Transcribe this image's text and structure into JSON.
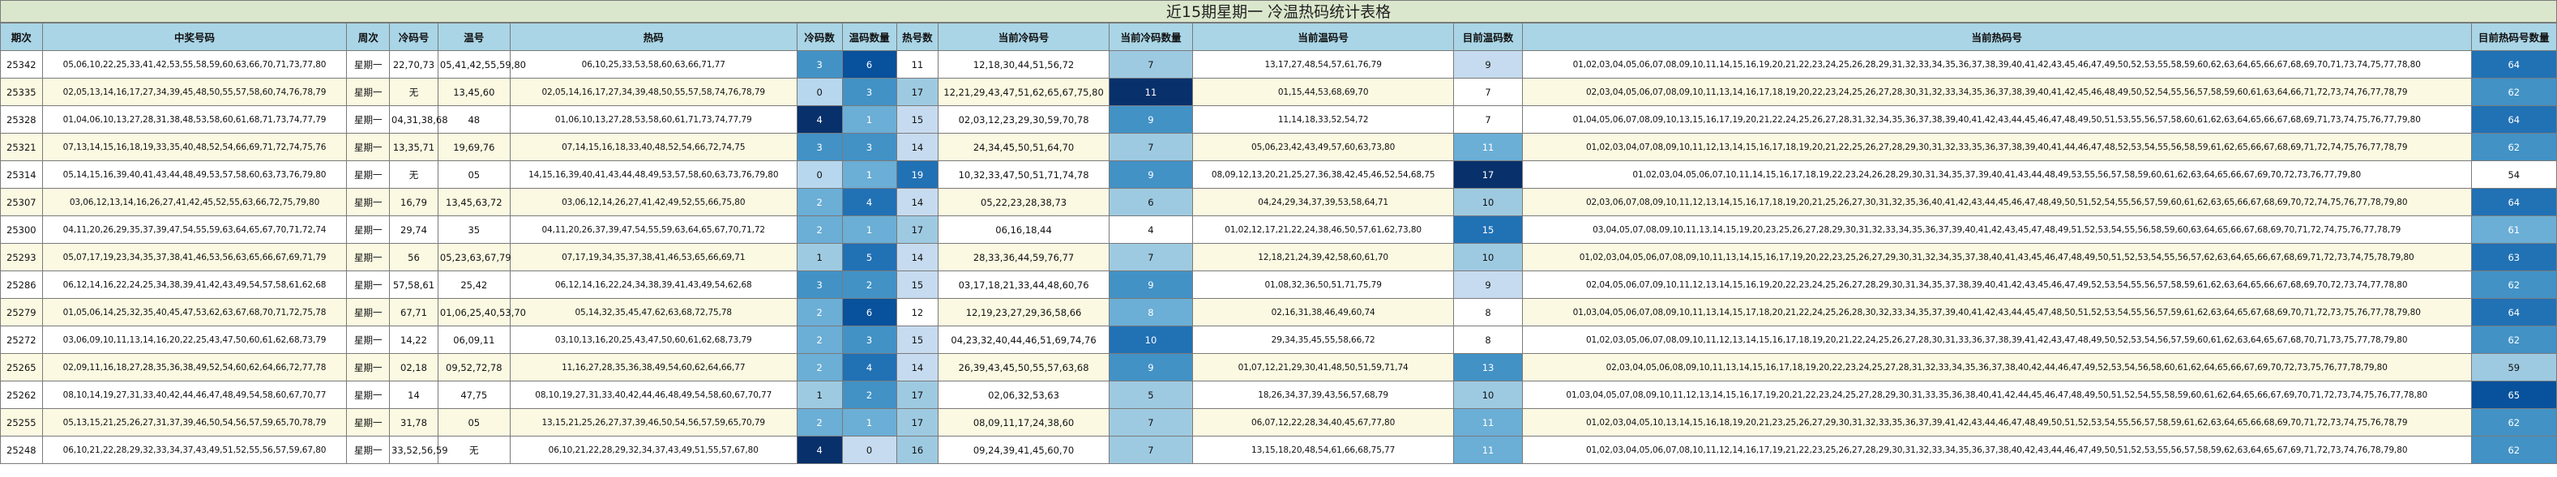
{
  "title": "近15期星期一 冷温热码统计表格",
  "headers": [
    "期次",
    "中奖号码",
    "周次",
    "冷码号",
    "温号",
    "热码",
    "冷码数",
    "温码数量",
    "热号数",
    "当前冷码号",
    "当前冷码数量",
    "当前温码号",
    "目前温码数",
    "当前热码号",
    "目前热码号数量"
  ],
  "rows": [
    {
      "issue": "25342",
      "win": "05,06,10,22,25,33,41,42,53,55,58,59,60,63,66,70,71,73,77,80",
      "week": "星期一",
      "cold": "22,70,73",
      "warm": "05,41,42,55,59,80",
      "hot": "06,10,25,33,53,58,60,63,66,71,77",
      "cold_n": "3",
      "warm_n": "6",
      "hot_n": "11",
      "cur_cold": "12,18,30,44,51,56,72",
      "cur_cold_n": "7",
      "cur_warm": "13,17,27,48,54,57,61,76,79",
      "cur_warm_n": "9",
      "cur_hot": "01,02,03,04,05,06,07,08,09,10,11,14,15,16,19,20,21,22,23,24,25,26,28,29,31,32,33,34,35,36,37,38,39,40,41,42,43,45,46,47,49,50,52,53,55,58,59,60,62,63,64,65,66,67,68,69,70,71,73,74,75,77,78,80",
      "cur_hot_n": "64"
    },
    {
      "issue": "25335",
      "win": "02,05,13,14,16,17,27,34,39,45,48,50,55,57,58,60,74,76,78,79",
      "week": "星期一",
      "cold": "无",
      "warm": "13,45,60",
      "hot": "02,05,14,16,17,27,34,39,48,50,55,57,58,74,76,78,79",
      "cold_n": "0",
      "warm_n": "3",
      "hot_n": "17",
      "cur_cold": "12,21,29,43,47,51,62,65,67,75,80",
      "cur_cold_n": "11",
      "cur_warm": "01,15,44,53,68,69,70",
      "cur_warm_n": "7",
      "cur_hot": "02,03,04,05,06,07,08,09,10,11,13,14,16,17,18,19,20,22,23,24,25,26,27,28,30,31,32,33,34,35,36,37,38,39,40,41,42,45,46,48,49,50,52,54,55,56,57,58,59,60,61,63,64,66,71,72,73,74,76,77,78,79",
      "cur_hot_n": "62"
    },
    {
      "issue": "25328",
      "win": "01,04,06,10,13,27,28,31,38,48,53,58,60,61,68,71,73,74,77,79",
      "week": "星期一",
      "cold": "04,31,38,68",
      "warm": "48",
      "hot": "01,06,10,13,27,28,53,58,60,61,71,73,74,77,79",
      "cold_n": "4",
      "warm_n": "1",
      "hot_n": "15",
      "cur_cold": "02,03,12,23,29,30,59,70,78",
      "cur_cold_n": "9",
      "cur_warm": "11,14,18,33,52,54,72",
      "cur_warm_n": "7",
      "cur_hot": "01,04,05,06,07,08,09,10,13,15,16,17,19,20,21,22,24,25,26,27,28,31,32,34,35,36,37,38,39,40,41,42,43,44,45,46,47,48,49,50,51,53,55,56,57,58,60,61,62,63,64,65,66,67,68,69,71,73,74,75,76,77,79,80",
      "cur_hot_n": "64"
    },
    {
      "issue": "25321",
      "win": "07,13,14,15,16,18,19,33,35,40,48,52,54,66,69,71,72,74,75,76",
      "week": "星期一",
      "cold": "13,35,71",
      "warm": "19,69,76",
      "hot": "07,14,15,16,18,33,40,48,52,54,66,72,74,75",
      "cold_n": "3",
      "warm_n": "3",
      "hot_n": "14",
      "cur_cold": "24,34,45,50,51,64,70",
      "cur_cold_n": "7",
      "cur_warm": "05,06,23,42,43,49,57,60,63,73,80",
      "cur_warm_n": "11",
      "cur_hot": "01,02,03,04,07,08,09,10,11,12,13,14,15,16,17,18,19,20,21,22,25,26,27,28,29,30,31,32,33,35,36,37,38,39,40,41,44,46,47,48,52,53,54,55,56,58,59,61,62,65,66,67,68,69,71,72,74,75,76,77,78,79",
      "cur_hot_n": "62"
    },
    {
      "issue": "25314",
      "win": "05,14,15,16,39,40,41,43,44,48,49,53,57,58,60,63,73,76,79,80",
      "week": "星期一",
      "cold": "无",
      "warm": "05",
      "hot": "14,15,16,39,40,41,43,44,48,49,53,57,58,60,63,73,76,79,80",
      "cold_n": "0",
      "warm_n": "1",
      "hot_n": "19",
      "cur_cold": "10,32,33,47,50,51,71,74,78",
      "cur_cold_n": "9",
      "cur_warm": "08,09,12,13,20,21,25,27,36,38,42,45,46,52,54,68,75",
      "cur_warm_n": "17",
      "cur_hot": "01,02,03,04,05,06,07,10,11,14,15,16,17,18,19,22,23,24,26,28,29,30,31,34,35,37,39,40,41,43,44,48,49,53,55,56,57,58,59,60,61,62,63,64,65,66,67,69,70,72,73,76,77,79,80",
      "cur_hot_n": "54"
    },
    {
      "issue": "25307",
      "win": "03,06,12,13,14,16,26,27,41,42,45,52,55,63,66,72,75,79,80",
      "week": "星期一",
      "cold": "16,79",
      "warm": "13,45,63,72",
      "hot": "03,06,12,14,26,27,41,42,49,52,55,66,75,80",
      "cold_n": "2",
      "warm_n": "4",
      "hot_n": "14",
      "cur_cold": "05,22,23,28,38,73",
      "cur_cold_n": "6",
      "cur_warm": "04,24,29,34,37,39,53,58,64,71",
      "cur_warm_n": "10",
      "cur_hot": "02,03,06,07,08,09,10,11,12,13,14,15,16,17,18,19,20,21,25,26,27,30,31,32,35,36,40,41,42,43,44,45,46,47,48,49,50,51,52,54,55,56,57,59,60,61,62,63,65,66,67,68,69,70,72,74,75,76,77,78,79,80",
      "cur_hot_n": "64"
    },
    {
      "issue": "25300",
      "win": "04,11,20,26,29,35,37,39,47,54,55,59,63,64,65,67,70,71,72,74",
      "week": "星期一",
      "cold": "29,74",
      "warm": "35",
      "hot": "04,11,20,26,37,39,47,54,55,59,63,64,65,67,70,71,72",
      "cold_n": "2",
      "warm_n": "1",
      "hot_n": "17",
      "cur_cold": "06,16,18,44",
      "cur_cold_n": "4",
      "cur_warm": "01,02,12,17,21,22,24,38,46,50,57,61,62,73,80",
      "cur_warm_n": "15",
      "cur_hot": "03,04,05,07,08,09,10,11,13,14,15,19,20,23,25,26,27,28,29,30,31,32,33,34,35,36,37,39,40,41,42,43,45,47,48,49,51,52,53,54,55,56,58,59,60,63,64,65,66,67,68,69,70,71,72,74,75,76,77,78,79",
      "cur_hot_n": "61"
    },
    {
      "issue": "25293",
      "win": "05,07,17,19,23,34,35,37,38,41,46,53,56,63,65,66,67,69,71,79",
      "week": "星期一",
      "cold": "56",
      "warm": "05,23,63,67,79",
      "hot": "07,17,19,34,35,37,38,41,46,53,65,66,69,71",
      "cold_n": "1",
      "warm_n": "5",
      "hot_n": "14",
      "cur_cold": "28,33,36,44,59,76,77",
      "cur_cold_n": "7",
      "cur_warm": "12,18,21,24,39,42,58,60,61,70",
      "cur_warm_n": "10",
      "cur_hot": "01,02,03,04,05,06,07,08,09,10,11,13,14,15,16,17,19,20,22,23,25,26,27,29,30,31,32,34,35,37,38,40,41,43,45,46,47,48,49,50,51,52,53,54,55,56,57,62,63,64,65,66,67,68,69,71,72,73,74,75,78,79,80",
      "cur_hot_n": "63"
    },
    {
      "issue": "25286",
      "win": "06,12,14,16,22,24,25,34,38,39,41,42,43,49,54,57,58,61,62,68",
      "week": "星期一",
      "cold": "57,58,61",
      "warm": "25,42",
      "hot": "06,12,14,16,22,24,34,38,39,41,43,49,54,62,68",
      "cold_n": "3",
      "warm_n": "2",
      "hot_n": "15",
      "cur_cold": "03,17,18,21,33,44,48,60,76",
      "cur_cold_n": "9",
      "cur_warm": "01,08,32,36,50,51,71,75,79",
      "cur_warm_n": "9",
      "cur_hot": "02,04,05,06,07,09,10,11,12,13,14,15,16,19,20,22,23,24,25,26,27,28,29,30,31,34,35,37,38,39,40,41,42,43,45,46,47,49,52,53,54,55,56,57,58,59,61,62,63,64,65,66,67,68,69,70,72,73,74,77,78,80",
      "cur_hot_n": "62"
    },
    {
      "issue": "25279",
      "win": "01,05,06,14,25,32,35,40,45,47,53,62,63,67,68,70,71,72,75,78",
      "week": "星期一",
      "cold": "67,71",
      "warm": "01,06,25,40,53,70",
      "hot": "05,14,32,35,45,47,62,63,68,72,75,78",
      "cold_n": "2",
      "warm_n": "6",
      "hot_n": "12",
      "cur_cold": "12,19,23,27,29,36,58,66",
      "cur_cold_n": "8",
      "cur_warm": "02,16,31,38,46,49,60,74",
      "cur_warm_n": "8",
      "cur_hot": "01,03,04,05,06,07,08,09,10,11,13,14,15,17,18,20,21,22,24,25,26,28,30,32,33,34,35,37,39,40,41,42,43,44,45,47,48,50,51,52,53,54,55,56,57,59,61,62,63,64,65,67,68,69,70,71,72,73,75,76,77,78,79,80",
      "cur_hot_n": "64"
    },
    {
      "issue": "25272",
      "win": "03,06,09,10,11,13,14,16,20,22,25,43,47,50,60,61,62,68,73,79",
      "week": "星期一",
      "cold": "14,22",
      "warm": "06,09,11",
      "hot": "03,10,13,16,20,25,43,47,50,60,61,62,68,73,79",
      "cold_n": "2",
      "warm_n": "3",
      "hot_n": "15",
      "cur_cold": "04,23,32,40,44,46,51,69,74,76",
      "cur_cold_n": "10",
      "cur_warm": "29,34,35,45,55,58,66,72",
      "cur_warm_n": "8",
      "cur_hot": "01,02,03,05,06,07,08,09,10,11,12,13,14,15,16,17,18,19,20,21,22,24,25,26,27,28,30,31,33,36,37,38,39,41,42,43,47,48,49,50,52,53,54,56,57,59,60,61,62,63,64,65,67,68,70,71,73,75,77,78,79,80",
      "cur_hot_n": "62"
    },
    {
      "issue": "25265",
      "win": "02,09,11,16,18,27,28,35,36,38,49,52,54,60,62,64,66,72,77,78",
      "week": "星期一",
      "cold": "02,18",
      "warm": "09,52,72,78",
      "hot": "11,16,27,28,35,36,38,49,54,60,62,64,66,77",
      "cold_n": "2",
      "warm_n": "4",
      "hot_n": "14",
      "cur_cold": "26,39,43,45,50,55,57,63,68",
      "cur_cold_n": "9",
      "cur_warm": "01,07,12,21,29,30,41,48,50,51,59,71,74",
      "cur_warm_n": "13",
      "cur_hot": "02,03,04,05,06,08,09,10,11,13,14,15,16,17,18,19,20,22,23,24,25,27,28,31,32,33,34,35,36,37,38,40,42,44,46,47,49,52,53,54,56,58,60,61,62,64,65,66,67,69,70,72,73,75,76,77,78,79,80",
      "cur_hot_n": "59"
    },
    {
      "issue": "25262",
      "win": "08,10,14,19,27,31,33,40,42,44,46,47,48,49,54,58,60,67,70,77",
      "week": "星期一",
      "cold": "14",
      "warm": "47,75",
      "hot": "08,10,19,27,31,33,40,42,44,46,48,49,54,58,60,67,70,77",
      "cold_n": "1",
      "warm_n": "2",
      "hot_n": "17",
      "cur_cold": "02,06,32,53,63",
      "cur_cold_n": "5",
      "cur_warm": "18,26,34,37,39,43,56,57,68,79",
      "cur_warm_n": "10",
      "cur_hot": "01,03,04,05,07,08,09,10,11,12,13,14,15,16,17,19,20,21,22,23,24,25,27,28,29,30,31,33,35,36,38,40,41,42,44,45,46,47,48,49,50,51,52,54,55,58,59,60,61,62,64,65,66,67,69,70,71,72,73,74,75,76,77,78,80",
      "cur_hot_n": "65"
    },
    {
      "issue": "25255",
      "win": "05,13,15,21,25,26,27,31,37,39,46,50,54,56,57,59,65,70,78,79",
      "week": "星期一",
      "cold": "31,78",
      "warm": "05",
      "hot": "13,15,21,25,26,27,37,39,46,50,54,56,57,59,65,70,79",
      "cold_n": "2",
      "warm_n": "1",
      "hot_n": "17",
      "cur_cold": "08,09,11,17,24,38,60",
      "cur_cold_n": "7",
      "cur_warm": "06,07,12,22,28,34,40,45,67,77,80",
      "cur_warm_n": "11",
      "cur_hot": "01,02,03,04,05,10,13,14,15,16,18,19,20,21,23,25,26,27,29,30,31,32,33,35,36,37,39,41,42,43,44,46,47,48,49,50,51,52,53,54,55,56,57,58,59,61,62,63,64,65,66,68,69,70,71,72,73,74,75,76,78,79",
      "cur_hot_n": "62"
    },
    {
      "issue": "25248",
      "win": "06,10,21,22,28,29,32,33,34,37,43,49,51,52,55,56,57,59,67,80",
      "week": "星期一",
      "cold": "33,52,56,59",
      "warm": "无",
      "hot": "06,10,21,22,28,29,32,34,37,43,49,51,55,57,67,80",
      "cold_n": "4",
      "warm_n": "0",
      "hot_n": "16",
      "cur_cold": "09,24,39,41,45,60,70",
      "cur_cold_n": "7",
      "cur_warm": "13,15,18,20,48,54,61,66,68,75,77",
      "cur_warm_n": "11",
      "cur_hot": "01,02,03,04,05,06,07,08,10,11,12,14,16,17,19,21,22,23,25,26,27,28,29,30,31,32,33,34,35,36,37,38,40,42,43,44,46,47,49,50,51,52,53,55,56,57,58,59,62,63,64,65,67,69,71,72,73,74,76,78,79,80",
      "cur_hot_n": "62"
    }
  ]
}
